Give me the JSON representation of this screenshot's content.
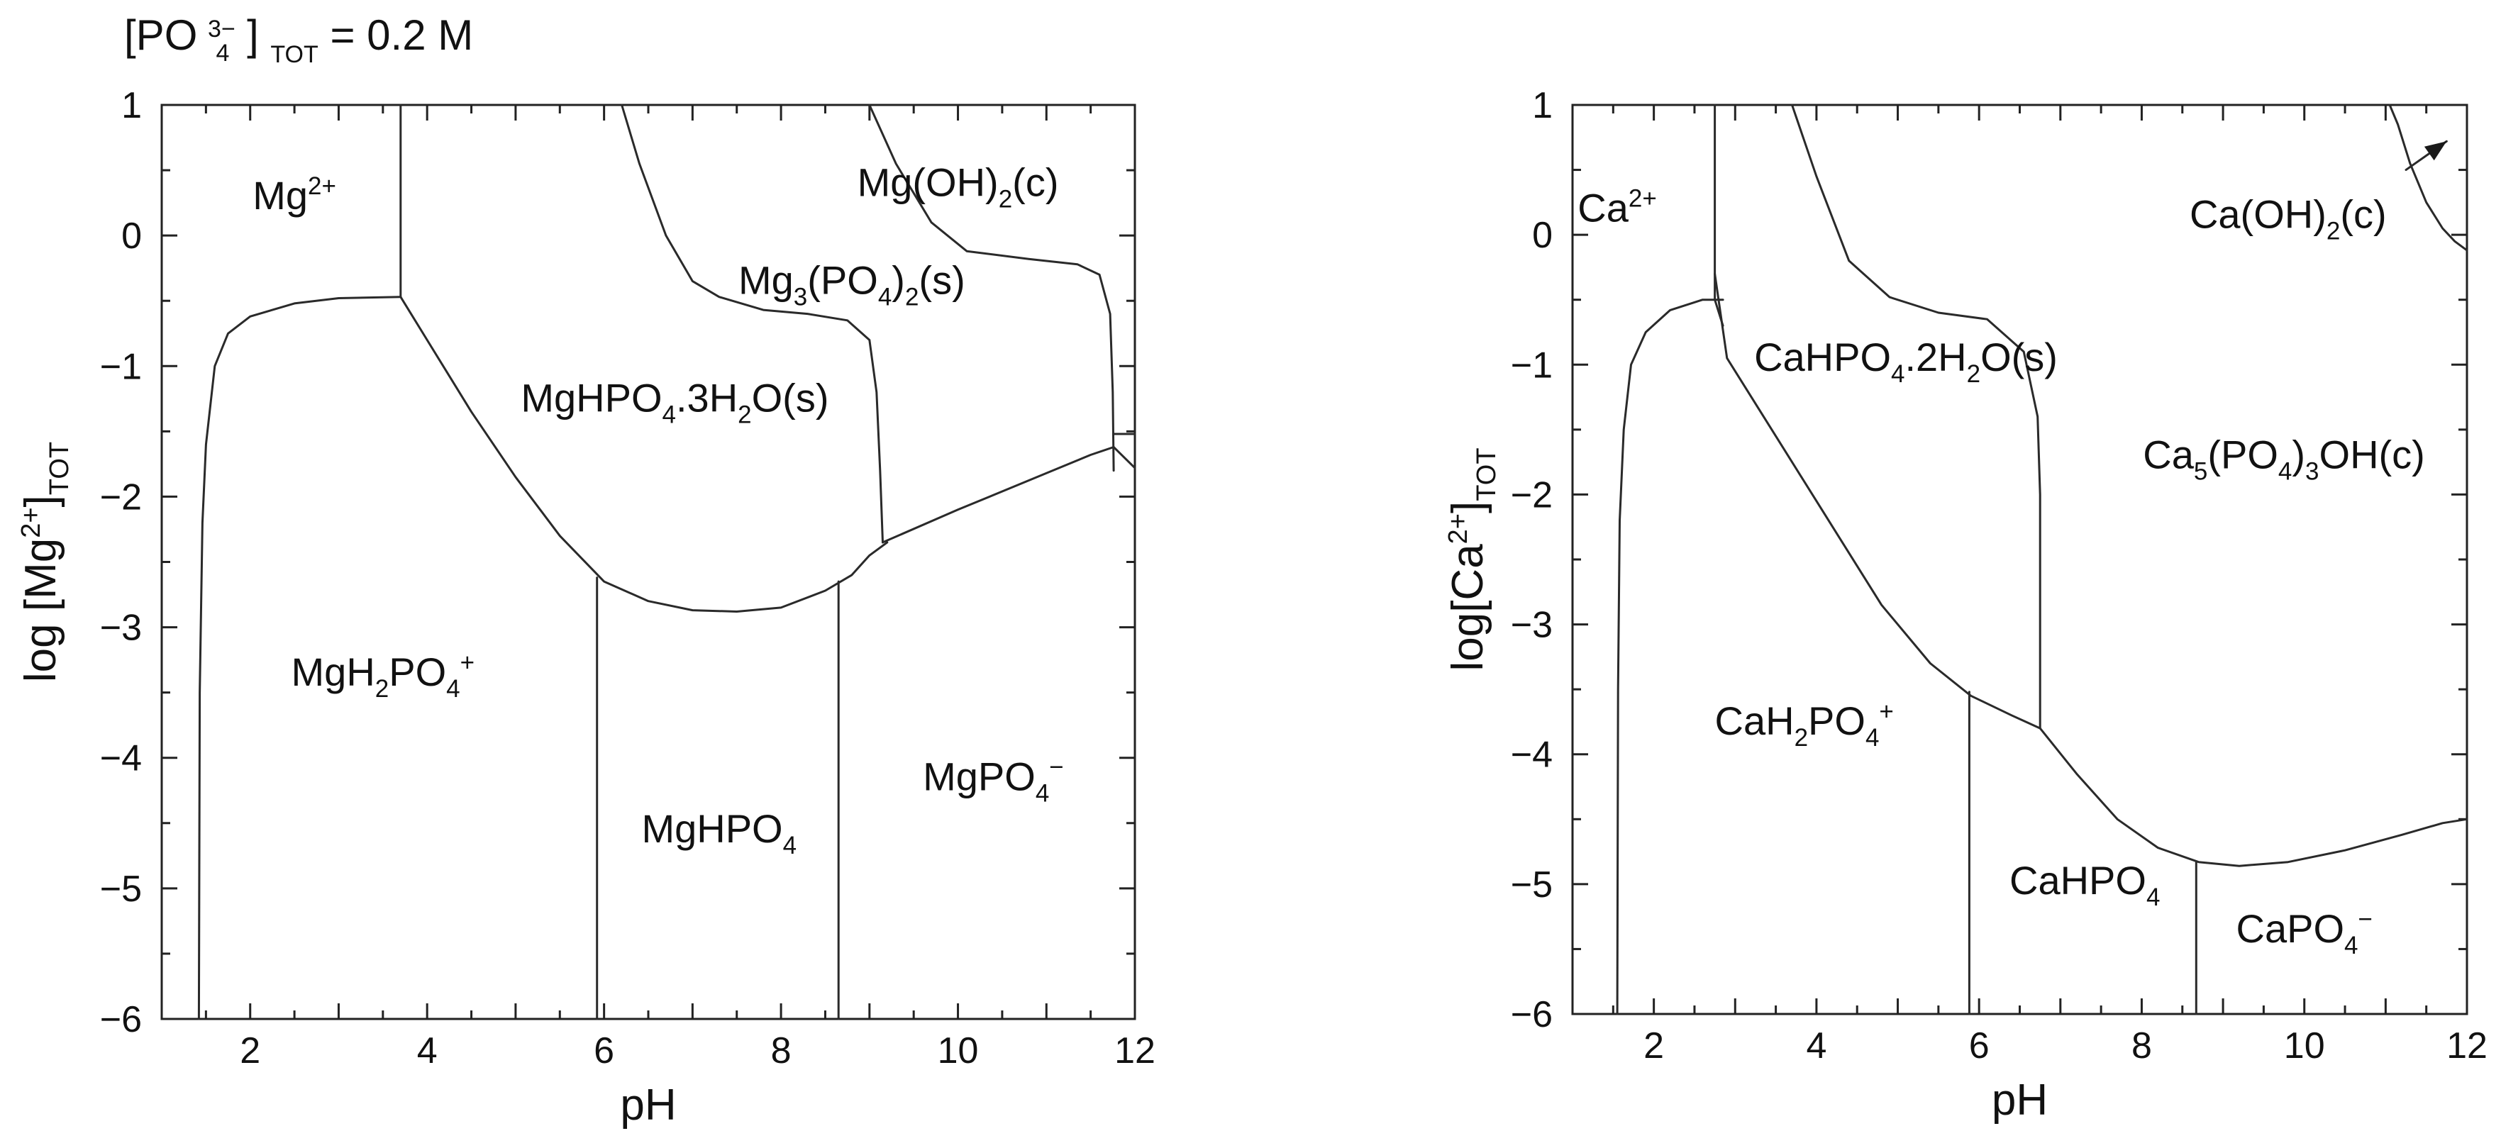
{
  "header_note": {
    "prefix": "[PO",
    "sub": "4",
    "sup": "3−",
    "close": "]",
    "tot": "TOT",
    "rest": " = 0.2 M"
  },
  "chart_data": [
    {
      "type": "area",
      "title": "",
      "xlabel": "pH",
      "ylabel": {
        "pre": "log [Mg",
        "sup": "2+",
        "post": "]",
        "sub": "TOT"
      },
      "xlim": [
        1,
        12
      ],
      "ylim": [
        -6,
        1
      ],
      "x_ticks": [
        2,
        4,
        6,
        8,
        10,
        12
      ],
      "y_ticks": [
        1,
        0,
        -1,
        -2,
        -3,
        -4,
        -5,
        -6
      ],
      "grid": false,
      "regions": [
        {
          "name": "Mg2+",
          "label": [
            {
              "t": "Mg"
            },
            {
              "t": "2+",
              "s": "sup"
            }
          ],
          "at": [
            2.5,
            0.3
          ]
        },
        {
          "name": "Mg(OH)2(c)",
          "label": [
            {
              "t": "Mg(OH)"
            },
            {
              "t": "2",
              "s": "sub"
            },
            {
              "t": "(c)"
            }
          ],
          "at": [
            10.0,
            0.4
          ]
        },
        {
          "name": "Mg3(PO4)2(s)",
          "label": [
            {
              "t": "Mg"
            },
            {
              "t": "3",
              "s": "sub"
            },
            {
              "t": "(PO"
            },
            {
              "t": "4",
              "s": "sub"
            },
            {
              "t": ")"
            },
            {
              "t": "2",
              "s": "sub"
            },
            {
              "t": "(s)"
            }
          ],
          "at": [
            8.8,
            -0.35
          ]
        },
        {
          "name": "MgHPO4.3H2O(s)",
          "label": [
            {
              "t": "MgHPO"
            },
            {
              "t": "4",
              "s": "sub"
            },
            {
              "t": ".3H"
            },
            {
              "t": "2",
              "s": "sub"
            },
            {
              "t": "O(s)"
            }
          ],
          "at": [
            6.8,
            -1.25
          ]
        },
        {
          "name": "MgH2PO4+",
          "label": [
            {
              "t": "MgH"
            },
            {
              "t": "2",
              "s": "sub"
            },
            {
              "t": "PO"
            },
            {
              "t": "4",
              "s": "sub"
            },
            {
              "t": "+",
              "s": "sup"
            }
          ],
          "at": [
            3.5,
            -3.35
          ]
        },
        {
          "name": "MgHPO4",
          "label": [
            {
              "t": "MgHPO"
            },
            {
              "t": "4",
              "s": "sub"
            }
          ],
          "at": [
            7.3,
            -4.55
          ]
        },
        {
          "name": "MgPO4-",
          "label": [
            {
              "t": "MgPO"
            },
            {
              "t": "4",
              "s": "sub"
            },
            {
              "t": "−",
              "s": "sup"
            }
          ],
          "at": [
            10.4,
            -4.15
          ]
        }
      ],
      "boundaries": [
        {
          "name": "Mg2+ / MgH2PO4+ solubility",
          "points": [
            [
              1.42,
              -6
            ],
            [
              1.43,
              -3.5
            ],
            [
              1.46,
              -2.2
            ],
            [
              1.5,
              -1.6
            ],
            [
              1.6,
              -1.0
            ],
            [
              1.75,
              -0.75
            ],
            [
              2.0,
              -0.62
            ],
            [
              2.5,
              -0.52
            ],
            [
              3.0,
              -0.48
            ],
            [
              3.7,
              -0.47
            ]
          ]
        },
        {
          "name": "Mg2+ / MgHPO4.3H2O(s)",
          "points": [
            [
              3.7,
              1
            ],
            [
              3.7,
              -0.47
            ]
          ]
        },
        {
          "name": "MgHPO4.3H2O(s) lower edge",
          "points": [
            [
              3.7,
              -0.47
            ],
            [
              4.0,
              -0.8
            ],
            [
              4.5,
              -1.35
            ],
            [
              5.0,
              -1.85
            ],
            [
              5.5,
              -2.3
            ],
            [
              6.0,
              -2.65
            ],
            [
              6.5,
              -2.8
            ],
            [
              7.0,
              -2.87
            ],
            [
              7.5,
              -2.88
            ],
            [
              8.0,
              -2.85
            ],
            [
              8.5,
              -2.72
            ],
            [
              8.8,
              -2.6
            ],
            [
              9.0,
              -2.45
            ],
            [
              9.2,
              -2.35
            ]
          ]
        },
        {
          "name": "MgH2PO4+ / MgHPO4",
          "points": [
            [
              5.92,
              -2.62
            ],
            [
              5.92,
              -6
            ]
          ]
        },
        {
          "name": "MgHPO4 / MgPO4-",
          "points": [
            [
              8.65,
              -2.65
            ],
            [
              8.65,
              -6
            ]
          ]
        },
        {
          "name": "MgHPO4.3H2O(s) / Mg3(PO4)2(s)",
          "points": [
            [
              6.2,
              1
            ],
            [
              6.4,
              0.55
            ],
            [
              6.7,
              0.0
            ],
            [
              7.0,
              -0.35
            ],
            [
              7.3,
              -0.47
            ],
            [
              7.8,
              -0.57
            ],
            [
              8.3,
              -0.6
            ],
            [
              8.75,
              -0.65
            ],
            [
              9.0,
              -0.8
            ],
            [
              9.08,
              -1.2
            ],
            [
              9.12,
              -1.8
            ],
            [
              9.15,
              -2.35
            ]
          ]
        },
        {
          "name": "Mg3(PO4)2(s) upper edge",
          "points": [
            [
              9.0,
              1
            ],
            [
              9.3,
              0.55
            ],
            [
              9.7,
              0.1
            ],
            [
              10.1,
              -0.12
            ],
            [
              10.8,
              -0.18
            ],
            [
              11.35,
              -0.22
            ],
            [
              11.6,
              -0.3
            ],
            [
              11.72,
              -0.6
            ],
            [
              11.75,
              -1.2
            ],
            [
              11.76,
              -1.8
            ]
          ]
        },
        {
          "name": "Mg3(PO4)2(s) / MgPO4-",
          "points": [
            [
              9.15,
              -2.35
            ],
            [
              10.0,
              -2.1
            ],
            [
              11.0,
              -1.82
            ],
            [
              11.5,
              -1.68
            ],
            [
              11.76,
              -1.62
            ]
          ]
        },
        {
          "name": "edge stub",
          "points": [
            [
              11.76,
              -1.52
            ],
            [
              12.0,
              -1.52
            ]
          ]
        },
        {
          "name": "edge stub 2",
          "points": [
            [
              11.76,
              -1.62
            ],
            [
              12.0,
              -1.78
            ]
          ]
        }
      ]
    },
    {
      "type": "area",
      "title": "",
      "xlabel": "pH",
      "ylabel": {
        "pre": "log[Ca",
        "sup": "2+",
        "post": "]",
        "sub": "TOT"
      },
      "xlim": [
        1,
        12
      ],
      "ylim": [
        -6,
        1
      ],
      "x_ticks": [
        2,
        4,
        6,
        8,
        10,
        12
      ],
      "y_ticks": [
        1,
        0,
        -1,
        -2,
        -3,
        -4,
        -5,
        -6
      ],
      "grid": false,
      "regions": [
        {
          "name": "Ca2+",
          "label": [
            {
              "t": "Ca"
            },
            {
              "t": "2+",
              "s": "sup"
            }
          ],
          "at": [
            1.55,
            0.2
          ]
        },
        {
          "name": "Ca(OH)2(c)",
          "label": [
            {
              "t": "Ca(OH)"
            },
            {
              "t": "2",
              "s": "sub"
            },
            {
              "t": "(c)"
            }
          ],
          "at": [
            9.8,
            0.15
          ]
        },
        {
          "name": "CaHPO4.2H2O(s)",
          "label": [
            {
              "t": "CaHPO"
            },
            {
              "t": "4",
              "s": "sub"
            },
            {
              "t": ".2H"
            },
            {
              "t": "2",
              "s": "sub"
            },
            {
              "t": "O(s)"
            }
          ],
          "at": [
            5.1,
            -0.95
          ]
        },
        {
          "name": "Ca5(PO4)3OH(c)",
          "label": [
            {
              "t": "Ca"
            },
            {
              "t": "5",
              "s": "sub"
            },
            {
              "t": "(PO"
            },
            {
              "t": "4",
              "s": "sub"
            },
            {
              "t": ")"
            },
            {
              "t": "3",
              "s": "sub"
            },
            {
              "t": "OH(c)"
            }
          ],
          "at": [
            9.75,
            -1.7
          ]
        },
        {
          "name": "CaH2PO4+",
          "label": [
            {
              "t": "CaH"
            },
            {
              "t": "2",
              "s": "sub"
            },
            {
              "t": "PO"
            },
            {
              "t": "4",
              "s": "sub"
            },
            {
              "t": "+",
              "s": "sup"
            }
          ],
          "at": [
            3.85,
            -3.75
          ]
        },
        {
          "name": "CaHPO4",
          "label": [
            {
              "t": "CaHPO"
            },
            {
              "t": "4",
              "s": "sub"
            }
          ],
          "at": [
            7.3,
            -4.98
          ]
        },
        {
          "name": "CaPO4-",
          "label": [
            {
              "t": "CaPO"
            },
            {
              "t": "4",
              "s": "sub"
            },
            {
              "t": "−",
              "s": "sup"
            }
          ],
          "at": [
            10.0,
            -5.35
          ]
        }
      ],
      "boundaries": [
        {
          "name": "Ca2+ / CaH2PO4+ solubility",
          "points": [
            [
              1.55,
              -6
            ],
            [
              1.56,
              -3.5
            ],
            [
              1.58,
              -2.2
            ],
            [
              1.63,
              -1.5
            ],
            [
              1.72,
              -1.0
            ],
            [
              1.9,
              -0.75
            ],
            [
              2.2,
              -0.58
            ],
            [
              2.6,
              -0.5
            ],
            [
              2.85,
              -0.5
            ]
          ]
        },
        {
          "name": "Ca2+ / CaHPO4.2H2O(s)",
          "points": [
            [
              2.75,
              1
            ],
            [
              2.75,
              -0.5
            ],
            [
              2.85,
              -0.7
            ]
          ]
        },
        {
          "name": "CaHPO4.2H2O(s) lower edge",
          "points": [
            [
              2.75,
              -0.3
            ],
            [
              2.9,
              -0.95
            ],
            [
              3.3,
              -1.35
            ],
            [
              4.0,
              -2.05
            ],
            [
              4.8,
              -2.85
            ],
            [
              5.4,
              -3.3
            ],
            [
              5.9,
              -3.55
            ],
            [
              6.4,
              -3.7
            ],
            [
              6.75,
              -3.8
            ]
          ]
        },
        {
          "name": "CaH2PO4+ / CaHPO4",
          "points": [
            [
              5.88,
              -3.52
            ],
            [
              5.88,
              -6
            ]
          ]
        },
        {
          "name": "CaHPO4.2H2O(s) / Ca5(PO4)3OH(c)",
          "points": [
            [
              3.7,
              1
            ],
            [
              4.0,
              0.45
            ],
            [
              4.4,
              -0.2
            ],
            [
              4.9,
              -0.48
            ],
            [
              5.5,
              -0.6
            ],
            [
              6.1,
              -0.65
            ],
            [
              6.55,
              -0.9
            ],
            [
              6.72,
              -1.4
            ],
            [
              6.75,
              -2.0
            ],
            [
              6.75,
              -3.8
            ]
          ]
        },
        {
          "name": "Ca5(PO4)3OH(c) lower edge",
          "points": [
            [
              6.75,
              -3.8
            ],
            [
              7.2,
              -4.15
            ],
            [
              7.7,
              -4.5
            ],
            [
              8.2,
              -4.72
            ],
            [
              8.7,
              -4.83
            ],
            [
              9.2,
              -4.86
            ],
            [
              9.8,
              -4.83
            ],
            [
              10.5,
              -4.74
            ],
            [
              11.2,
              -4.62
            ],
            [
              11.7,
              -4.53
            ],
            [
              12.0,
              -4.5
            ]
          ]
        },
        {
          "name": "CaHPO4 / CaPO4-",
          "points": [
            [
              8.67,
              -4.83
            ],
            [
              8.67,
              -6
            ]
          ]
        },
        {
          "name": "Ca(OH)2(c) boundary",
          "points": [
            [
              11.05,
              1
            ],
            [
              11.15,
              0.85
            ],
            [
              11.3,
              0.55
            ],
            [
              11.5,
              0.25
            ],
            [
              11.7,
              0.05
            ],
            [
              11.85,
              -0.05
            ],
            [
              12.0,
              -0.12
            ]
          ]
        }
      ],
      "arrows": [
        {
          "name": "Ca(OH)2(c) pointer",
          "from": [
            11.25,
            0.5
          ],
          "to": [
            11.75,
            0.72
          ]
        }
      ]
    }
  ]
}
